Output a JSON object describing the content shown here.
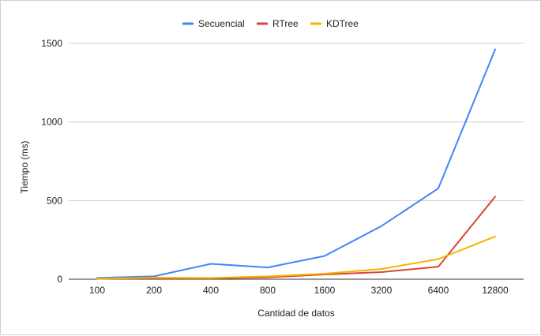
{
  "chart_data": {
    "type": "line",
    "title": "",
    "xlabel": "Cantidad de datos",
    "ylabel": "Tiempo (ms)",
    "categories": [
      "100",
      "200",
      "400",
      "800",
      "1600",
      "3200",
      "6400",
      "12800"
    ],
    "ylim": [
      0,
      1600
    ],
    "yticks": [
      0,
      500,
      1000,
      1500
    ],
    "grid": true,
    "legend_position": "top",
    "series": [
      {
        "name": "Secuencial",
        "color": "#4285f4",
        "values": [
          8,
          18,
          98,
          75,
          148,
          338,
          578,
          1462
        ]
      },
      {
        "name": "RTree",
        "color": "#db4437",
        "values": [
          3,
          5,
          5,
          12,
          30,
          45,
          80,
          525
        ]
      },
      {
        "name": "KDTree",
        "color": "#f4b400",
        "values": [
          3,
          10,
          8,
          18,
          35,
          65,
          128,
          272
        ]
      }
    ]
  }
}
